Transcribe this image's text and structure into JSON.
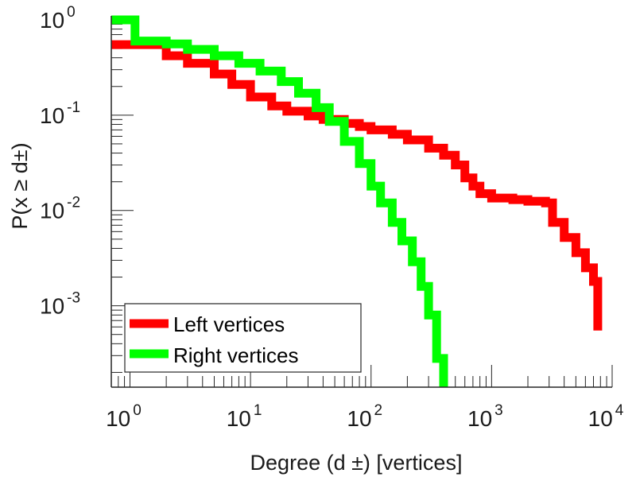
{
  "chart_data": {
    "type": "line",
    "step": true,
    "xscale": "log",
    "yscale": "log",
    "xlim": [
      0.7,
      10000
    ],
    "ylim": [
      0.00014,
      1.1
    ],
    "grid": false,
    "legend_position": "bottom-left",
    "xlabel": "Degree (d ±) [vertices]",
    "ylabel": "P(x ≥ d±)",
    "x_ticks": [
      {
        "value": 1,
        "base": "10",
        "exp": "0"
      },
      {
        "value": 10,
        "base": "10",
        "exp": "1"
      },
      {
        "value": 100,
        "base": "10",
        "exp": "2"
      },
      {
        "value": 1000,
        "base": "10",
        "exp": "3"
      },
      {
        "value": 10000,
        "base": "10",
        "exp": "4"
      }
    ],
    "y_ticks": [
      {
        "value": 1,
        "base": "10",
        "exp": "0"
      },
      {
        "value": 0.1,
        "base": "10",
        "exp": "-1"
      },
      {
        "value": 0.01,
        "base": "10",
        "exp": "-2"
      },
      {
        "value": 0.001,
        "base": "10",
        "exp": "-3"
      }
    ],
    "series": [
      {
        "name": "Left vertices",
        "color": "#ff0000",
        "x": [
          0.7,
          1,
          2,
          3,
          5,
          7,
          10,
          15,
          20,
          30,
          40,
          60,
          80,
          100,
          150,
          200,
          300,
          400,
          500,
          600,
          700,
          800,
          1000,
          1500,
          2000,
          2800,
          3200,
          4000,
          5000,
          6000,
          7000,
          7600,
          7600
        ],
        "y": [
          0.55,
          0.55,
          0.42,
          0.35,
          0.27,
          0.21,
          0.155,
          0.125,
          0.11,
          0.098,
          0.09,
          0.082,
          0.076,
          0.07,
          0.063,
          0.055,
          0.045,
          0.038,
          0.03,
          0.022,
          0.018,
          0.015,
          0.0135,
          0.013,
          0.0125,
          0.012,
          0.0075,
          0.0052,
          0.0036,
          0.0025,
          0.0018,
          0.00125,
          0.00055
        ]
      },
      {
        "name": "Right vertices",
        "color": "#00ff00",
        "x": [
          0.7,
          1.1,
          2,
          3,
          5,
          8,
          12,
          18,
          25,
          35,
          45,
          60,
          80,
          100,
          120,
          150,
          180,
          220,
          260,
          300,
          350,
          400,
          400
        ],
        "y": [
          1.0,
          0.6,
          0.56,
          0.49,
          0.42,
          0.35,
          0.29,
          0.225,
          0.17,
          0.12,
          0.086,
          0.053,
          0.031,
          0.018,
          0.012,
          0.0075,
          0.0048,
          0.0029,
          0.0016,
          0.0008,
          0.00028,
          0.00014,
          0.00014
        ]
      }
    ]
  }
}
